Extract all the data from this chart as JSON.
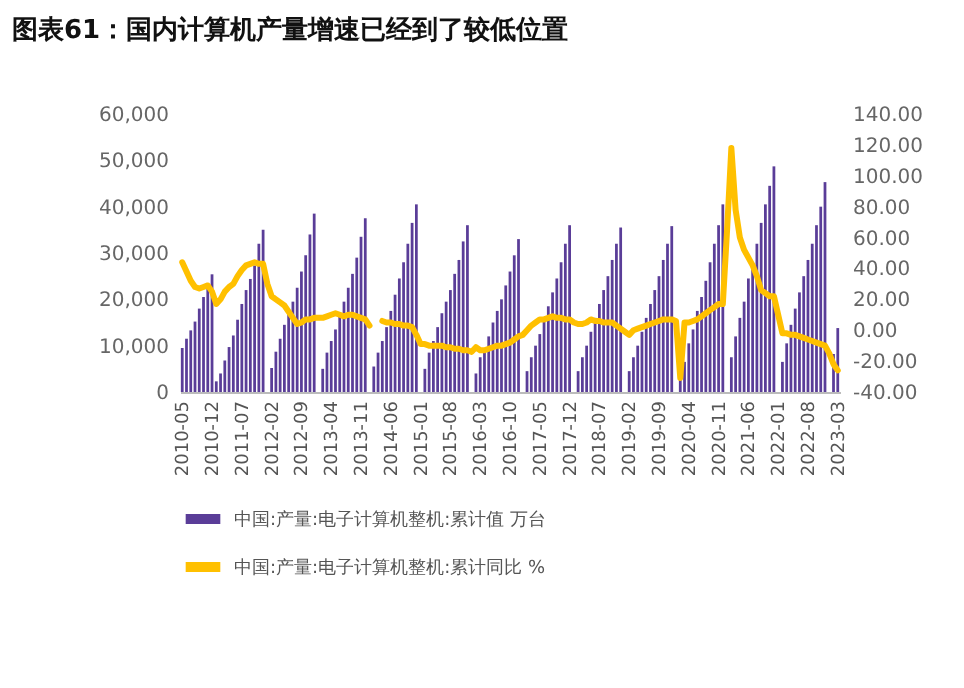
{
  "chart_data": {
    "type": "bar",
    "title": "图表61：国内计算机产量增速已经到了较低位置",
    "categories": [
      "2010-05",
      null,
      null,
      null,
      null,
      null,
      null,
      "2010-12",
      null,
      null,
      null,
      null,
      null,
      null,
      "2011-07",
      null,
      null,
      null,
      null,
      null,
      null,
      "2012-02",
      null,
      null,
      null,
      null,
      null,
      null,
      "2012-09",
      null,
      null,
      null,
      null,
      null,
      null,
      "2013-04",
      null,
      null,
      null,
      null,
      null,
      null,
      "2013-11",
      null,
      null,
      null,
      null,
      null,
      null,
      "2014-06",
      null,
      null,
      null,
      null,
      null,
      null,
      "2015-01",
      null,
      null,
      null,
      null,
      null,
      null,
      "2015-08",
      null,
      null,
      null,
      null,
      null,
      null,
      "2016-03",
      null,
      null,
      null,
      null,
      null,
      null,
      "2016-10",
      null,
      null,
      null,
      null,
      null,
      null,
      "2017-05",
      null,
      null,
      null,
      null,
      null,
      null,
      "2017-12",
      null,
      null,
      null,
      null,
      null,
      null,
      "2018-07",
      null,
      null,
      null,
      null,
      null,
      null,
      "2019-02",
      null,
      null,
      null,
      null,
      null,
      null,
      "2019-09",
      null,
      null,
      null,
      null,
      null,
      null,
      "2020-04",
      null,
      null,
      null,
      null,
      null,
      null,
      "2020-11",
      null,
      null,
      null,
      null,
      null,
      null,
      "2021-06",
      null,
      null,
      null,
      null,
      null,
      null,
      "2022-01",
      null,
      null,
      null,
      null,
      null,
      null,
      "2022-08",
      null,
      null,
      null,
      null,
      null,
      null,
      "2023-03"
    ],
    "series": [
      {
        "name": "中国:产量:电子计算机整机:累计值 万台",
        "color": "#5a3d98",
        "values": [
          9500,
          11500,
          13300,
          15200,
          18000,
          20500,
          23000,
          25400,
          2300,
          4000,
          6800,
          9700,
          12200,
          15600,
          19000,
          22000,
          24400,
          27300,
          32000,
          35000,
          null,
          5200,
          8700,
          11500,
          14500,
          17000,
          19500,
          22500,
          26000,
          29500,
          34000,
          38500,
          null,
          5000,
          8500,
          11000,
          13500,
          16500,
          19500,
          22500,
          25500,
          29000,
          33500,
          37500,
          null,
          5500,
          8500,
          11000,
          14000,
          17500,
          21000,
          24500,
          28000,
          32000,
          36500,
          40500,
          null,
          5000,
          8500,
          11000,
          14000,
          17000,
          19500,
          22000,
          25500,
          28500,
          32500,
          36000,
          null,
          4000,
          7500,
          9500,
          12000,
          15000,
          17500,
          20000,
          23000,
          26000,
          29500,
          33000,
          null,
          4500,
          7500,
          10000,
          12500,
          15500,
          18500,
          21500,
          24500,
          28000,
          32000,
          36000,
          null,
          4500,
          7500,
          10000,
          13000,
          16000,
          19000,
          22000,
          25000,
          28500,
          32000,
          35500,
          null,
          4500,
          7500,
          10000,
          13000,
          16000,
          19000,
          22000,
          25000,
          28500,
          32000,
          35800,
          null,
          3500,
          6500,
          10500,
          13500,
          17500,
          20500,
          24000,
          28000,
          32000,
          36000,
          40500,
          null,
          7500,
          12000,
          16000,
          19500,
          24500,
          28000,
          32000,
          36500,
          40500,
          44500,
          48700,
          null,
          6500,
          10500,
          14500,
          18000,
          21500,
          25000,
          28500,
          32000,
          36000,
          40000,
          45300,
          null,
          8200,
          13800
        ]
      },
      {
        "name": "中国:产量:电子计算机整机:累计同比 %",
        "type": "line",
        "axis": "y2",
        "color": "#ffc000",
        "values": [
          44,
          38,
          32,
          28,
          27,
          28,
          29,
          25,
          17,
          20,
          25,
          28,
          30,
          35,
          39,
          42,
          43,
          44,
          43,
          43,
          30,
          22,
          20,
          18,
          16,
          12,
          8,
          4,
          5,
          7,
          7,
          8,
          8,
          8,
          9,
          10,
          11,
          10,
          9,
          10,
          10,
          9,
          8,
          7,
          3,
          null,
          null,
          6,
          5,
          5,
          4,
          4,
          3,
          3,
          2,
          -3,
          -9,
          -9,
          -10,
          -10,
          -10,
          -10,
          -11,
          -11,
          -12,
          -12,
          -13,
          -13,
          -14,
          -11,
          -13,
          -13,
          -12,
          -11,
          -10,
          -10,
          -9,
          -8,
          -6,
          -4,
          -3,
          0,
          3,
          5,
          7,
          7,
          8,
          9,
          8,
          8,
          7,
          7,
          5,
          4,
          4,
          5,
          7,
          6,
          6,
          5,
          5,
          5,
          3,
          1,
          -1,
          -3,
          0,
          1,
          2,
          3,
          4,
          5,
          6,
          7,
          7,
          7,
          6,
          -31,
          5,
          5,
          6,
          7,
          9,
          11,
          13,
          15,
          17,
          17,
          65,
          118,
          78,
          60,
          52,
          47,
          42,
          35,
          26,
          24,
          22,
          22,
          10,
          -2,
          -2,
          -3,
          -3,
          -4,
          -5,
          -6,
          -7,
          -8,
          -9,
          -10,
          -15,
          -22,
          -26
        ]
      }
    ],
    "ylim": [
      0,
      60000
    ],
    "yticks": [
      0,
      {
        "value": 10000,
        "label": "10,000"
      },
      {
        "value": 20000,
        "label": "20,000"
      },
      {
        "value": 30000,
        "label": "30,000"
      },
      {
        "value": 40000,
        "label": "40,000"
      },
      {
        "value": 50000,
        "label": "50,000"
      },
      {
        "value": 60000,
        "label": "60,000"
      }
    ],
    "y2lim": [
      -40,
      140
    ],
    "y2ticks": [
      {
        "value": -40,
        "label": "-40.00"
      },
      {
        "value": -20,
        "label": "-20.00"
      },
      {
        "value": 0,
        "label": "0.00"
      },
      {
        "value": 20,
        "label": "20.00"
      },
      {
        "value": 40,
        "label": "40.00"
      },
      {
        "value": 60,
        "label": "60.00"
      },
      {
        "value": 80,
        "label": "80.00"
      },
      {
        "value": 100,
        "label": "100.00"
      },
      {
        "value": 120,
        "label": "120.00"
      },
      {
        "value": 140,
        "label": "140.00"
      }
    ],
    "grid": false,
    "legend": "bottom"
  }
}
